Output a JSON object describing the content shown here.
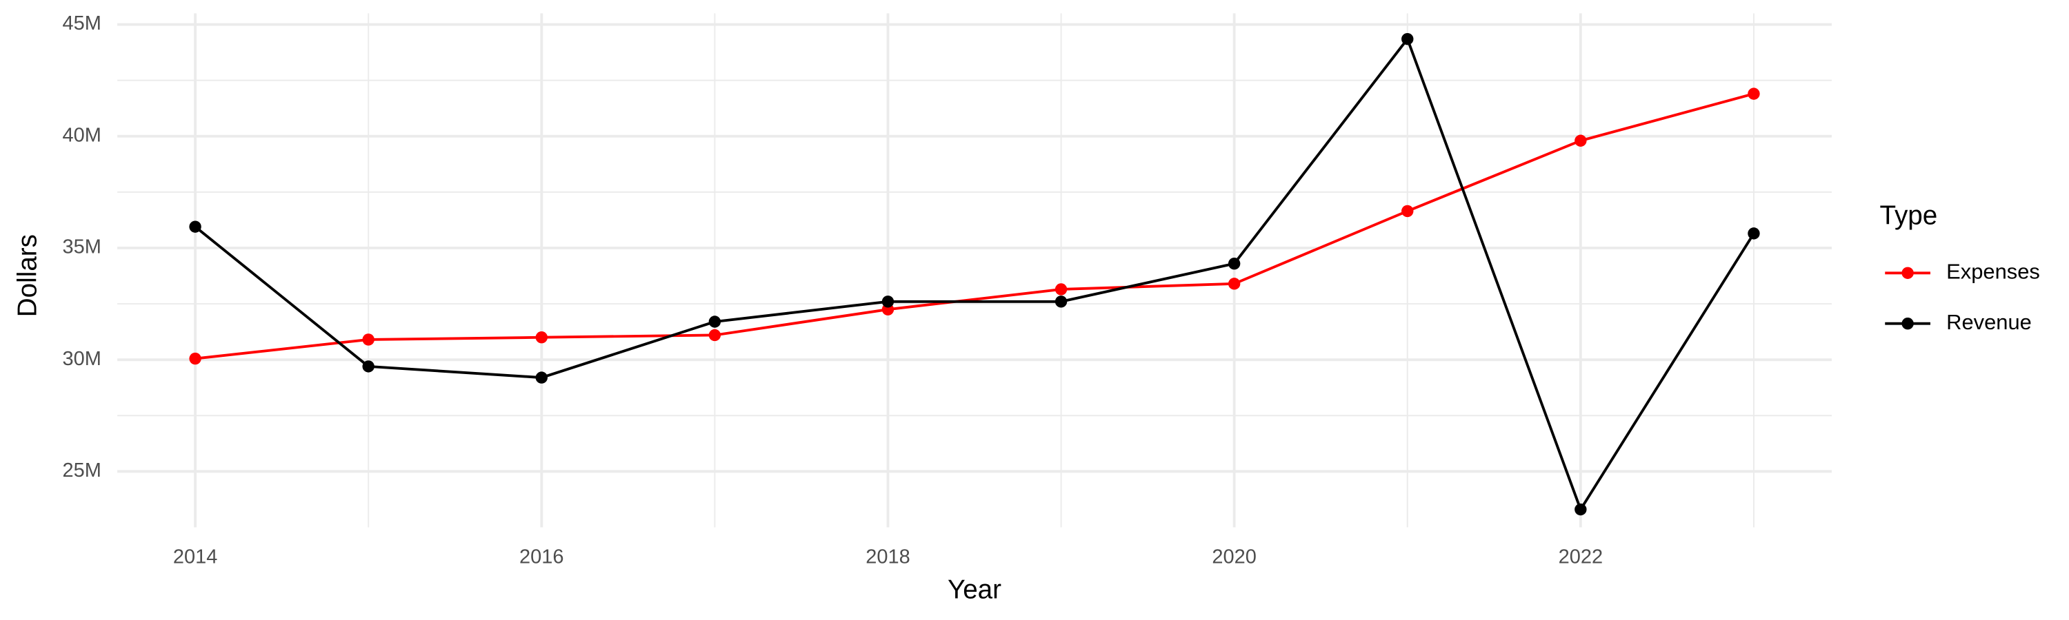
{
  "chart_data": {
    "type": "line",
    "x_label": "Year",
    "y_label": "Dollars",
    "legend_title": "Type",
    "legend_position": "right",
    "grid": true,
    "x": [
      2014,
      2015,
      2016,
      2017,
      2018,
      2019,
      2020,
      2021,
      2022,
      2023
    ],
    "series": [
      {
        "name": "Expenses",
        "color": "#ff0000",
        "values": [
          30050000,
          30900000,
          31000000,
          31100000,
          32250000,
          33150000,
          33400000,
          36650000,
          39800000,
          41900000
        ]
      },
      {
        "name": "Revenue",
        "color": "#000000",
        "values": [
          35950000,
          29700000,
          29200000,
          31700000,
          32600000,
          32600000,
          34300000,
          44350000,
          23300000,
          35650000
        ]
      }
    ],
    "xlim": [
      2013.55,
      2023.45
    ],
    "xticks": [
      2014,
      2016,
      2018,
      2020,
      2022
    ],
    "ylim": [
      22500000,
      45500000
    ],
    "yticks": [
      {
        "value": 25000000,
        "label": "25M"
      },
      {
        "value": 30000000,
        "label": "30M"
      },
      {
        "value": 35000000,
        "label": "35M"
      },
      {
        "value": 40000000,
        "label": "40M"
      },
      {
        "value": 45000000,
        "label": "45M"
      }
    ]
  }
}
